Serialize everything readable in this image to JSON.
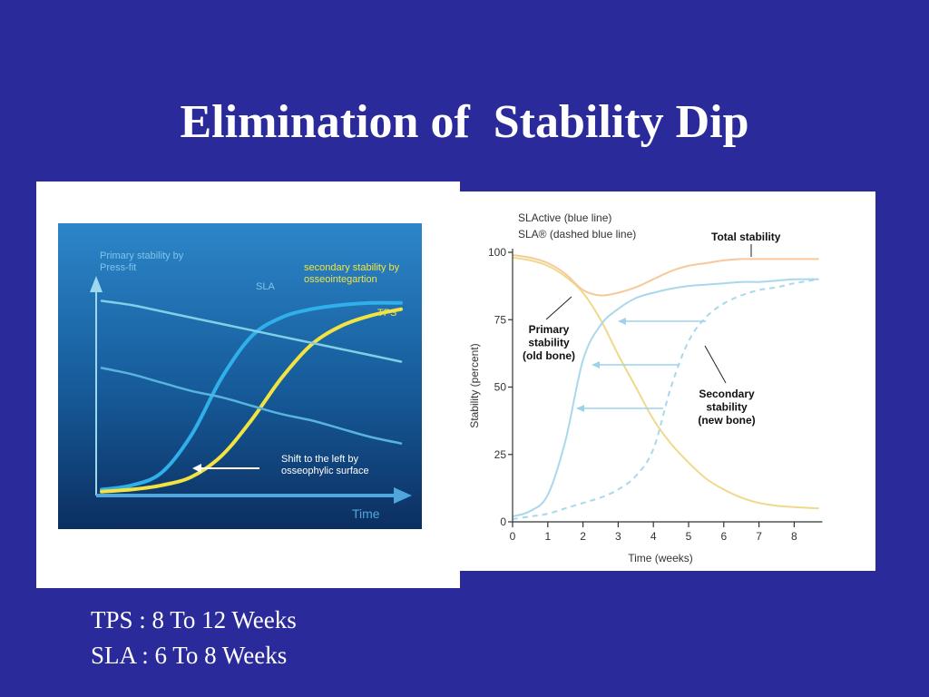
{
  "slide": {
    "title": "Elimination of  Stability Dip",
    "notes": [
      "TPS : 8 To 12 Weeks",
      "SLA : 6 To 8 Weeks"
    ]
  },
  "colors": {
    "slide_background": "#2a2a9a",
    "sla_blue": "#2fb0ea",
    "tps_yellow": "#f2e341",
    "right_blue": "#a9d8ec",
    "right_yellow": "#efd98a",
    "right_total": "#f7c99a",
    "arrow_blue": "#9ed2ea"
  },
  "chart_data": [
    {
      "type": "line",
      "x": [
        0,
        1,
        2,
        3,
        4,
        5,
        6,
        7,
        8,
        9,
        10
      ],
      "series": [
        {
          "name": "SLA",
          "values": [
            2,
            4,
            10,
            28,
            55,
            75,
            84,
            88,
            90,
            91,
            91
          ]
        },
        {
          "name": "TPS",
          "values": [
            1,
            2,
            4,
            8,
            18,
            35,
            55,
            71,
            80,
            85,
            88
          ]
        },
        {
          "values": [
            92,
            90,
            87,
            84,
            81,
            78,
            75,
            72,
            69,
            66,
            63
          ]
        },
        {
          "values": [
            60,
            57,
            53,
            49,
            46,
            42,
            38,
            35,
            31,
            27,
            24
          ]
        }
      ],
      "annotations": {
        "primary": "Primary stability by\nPress-fit",
        "secondary": "secondary stability by\nosseointegartion",
        "sla": "SLA",
        "tps": "TPS",
        "shift": "Shift to the left by\nosseophylic surface"
      },
      "xlabel": "Time",
      "ylim": [
        0,
        100
      ],
      "grid": false
    },
    {
      "type": "line",
      "x": [
        0,
        0.5,
        1,
        1.5,
        2,
        2.5,
        3,
        3.5,
        4,
        4.5,
        5,
        5.5,
        6,
        6.5,
        7,
        7.5,
        8,
        8.7
      ],
      "x_ticks": [
        "0",
        "1",
        "2",
        "3",
        "4",
        "5",
        "6",
        "7",
        "8"
      ],
      "y_ticks": [
        "0",
        "25",
        "50",
        "75",
        "100"
      ],
      "xlim": [
        0,
        8.8
      ],
      "ylim": [
        0,
        100
      ],
      "xlabel": "Time (weeks)",
      "ylabel": "Stability (percent)",
      "legend_lines": [
        "SLActive (blue line)",
        "SLA® (dashed blue line)"
      ],
      "series": [
        {
          "values": [
            98,
            97,
            95,
            91,
            85,
            75,
            62,
            50,
            38,
            29,
            22,
            16,
            12,
            9,
            7,
            6,
            5.5,
            5
          ],
          "style": "primary"
        },
        {
          "values": [
            2,
            4,
            10,
            30,
            60,
            73,
            79,
            83,
            85,
            86.5,
            87.5,
            88,
            88.5,
            89,
            89,
            89.5,
            90,
            90
          ],
          "style": "solid"
        },
        {
          "values": [
            1,
            2,
            3,
            5,
            7,
            9,
            12,
            17,
            27,
            50,
            67,
            76,
            81,
            84,
            86,
            87,
            88.5,
            90
          ],
          "style": "dashed"
        },
        {
          "values": [
            99,
            98,
            96,
            92,
            86,
            84,
            85,
            87,
            90,
            93,
            95,
            96,
            97,
            97.5,
            97.5,
            97.5,
            97.5,
            97.5
          ],
          "style": "total"
        }
      ],
      "annotations": {
        "total": "Total stability",
        "primary": "Primary\nstability\n(old bone)",
        "secondary": "Secondary\nstability\n(new bone)"
      },
      "grid": false
    }
  ]
}
